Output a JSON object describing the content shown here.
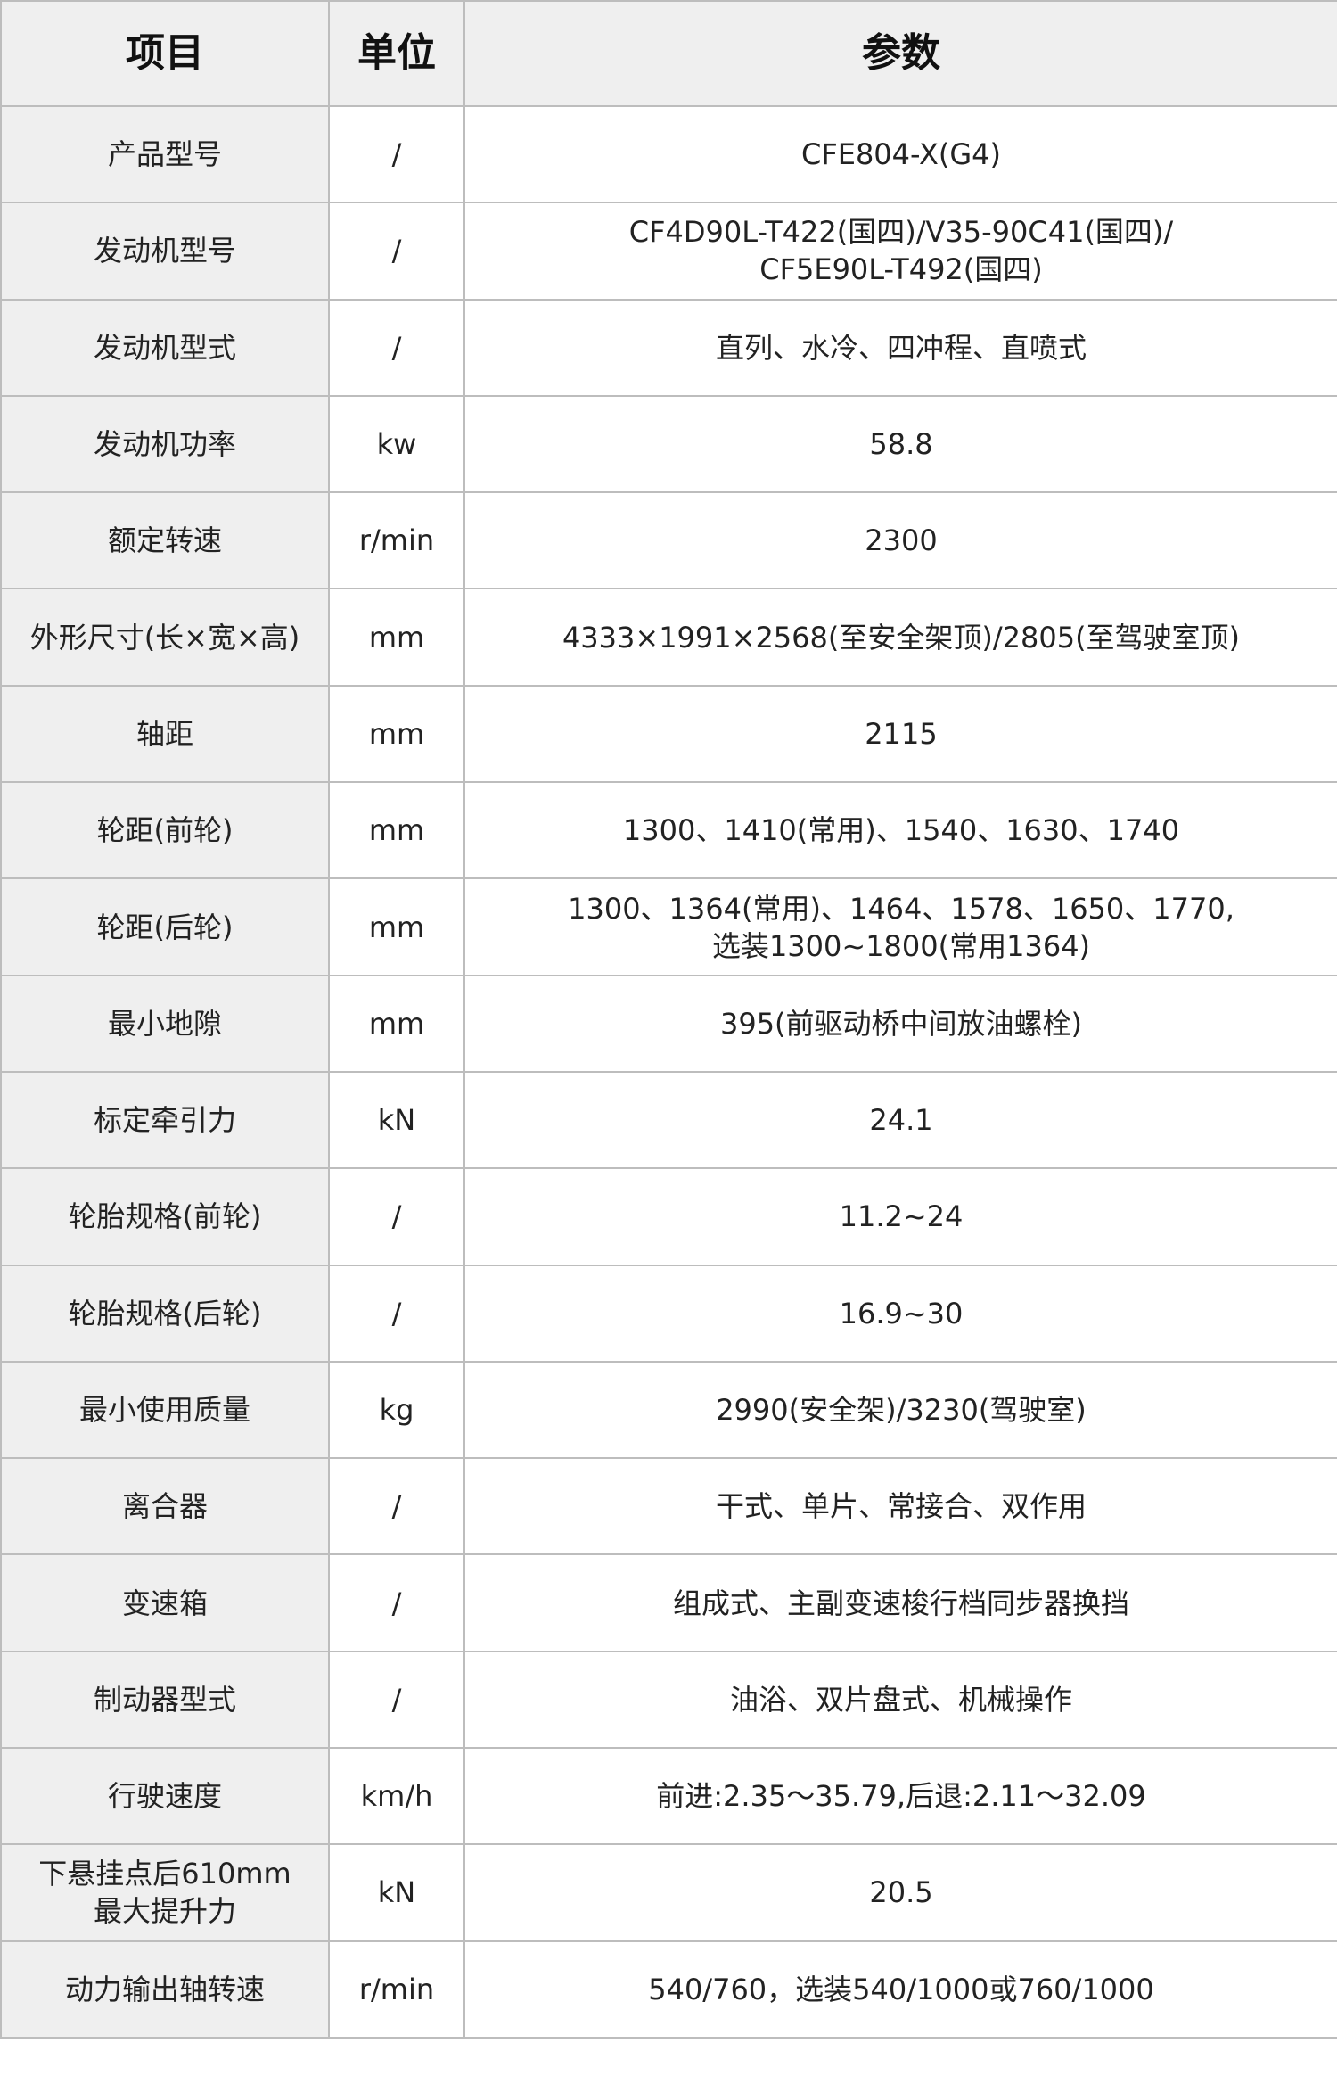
{
  "header": {
    "item": "项目",
    "unit": "单位",
    "param": "参数"
  },
  "rows": [
    {
      "item": "产品型号",
      "unit": "/",
      "value": "CFE804-X(G4)"
    },
    {
      "item": "发动机型号",
      "unit": "/",
      "value": "CF4D90L-T422(国四)/V35-90C41(国四)/\nCF5E90L-T492(国四)"
    },
    {
      "item": "发动机型式",
      "unit": "/",
      "value": "直列、水冷、四冲程、直喷式"
    },
    {
      "item": "发动机功率",
      "unit": "kw",
      "value": "58.8"
    },
    {
      "item": "额定转速",
      "unit": "r/min",
      "value": "2300"
    },
    {
      "item": "外形尺寸(长×宽×高)",
      "unit": "mm",
      "value": "4333×1991×2568(至安全架顶)/2805(至驾驶室顶)"
    },
    {
      "item": "轴距",
      "unit": "mm",
      "value": "2115"
    },
    {
      "item": "轮距(前轮)",
      "unit": "mm",
      "value": "1300、1410(常用)、1540、1630、1740"
    },
    {
      "item": "轮距(后轮)",
      "unit": "mm",
      "value": "1300、1364(常用)、1464、1578、1650、1770,\n选装1300~1800(常用1364)"
    },
    {
      "item": "最小地隙",
      "unit": "mm",
      "value": "395(前驱动桥中间放油螺栓)"
    },
    {
      "item": "标定牵引力",
      "unit": "kN",
      "value": "24.1"
    },
    {
      "item": "轮胎规格(前轮)",
      "unit": "/",
      "value": "11.2~24"
    },
    {
      "item": "轮胎规格(后轮)",
      "unit": "/",
      "value": "16.9~30"
    },
    {
      "item": "最小使用质量",
      "unit": "kg",
      "value": "2990(安全架)/3230(驾驶室)"
    },
    {
      "item": "离合器",
      "unit": "/",
      "value": "干式、单片、常接合、双作用"
    },
    {
      "item": "变速箱",
      "unit": "/",
      "value": "组成式、主副变速梭行档同步器换挡"
    },
    {
      "item": "制动器型式",
      "unit": "/",
      "value": "油浴、双片盘式、机械操作"
    },
    {
      "item": "行驶速度",
      "unit": "km/h",
      "value": "前进:2.35～35.79,后退:2.11～32.09"
    },
    {
      "item": "下悬挂点后610mm\n最大提升力",
      "unit": "kN",
      "value": "20.5"
    },
    {
      "item": "动力输出轴转速",
      "unit": "r/min",
      "value": "540/760，选装540/1000或760/1000"
    }
  ]
}
